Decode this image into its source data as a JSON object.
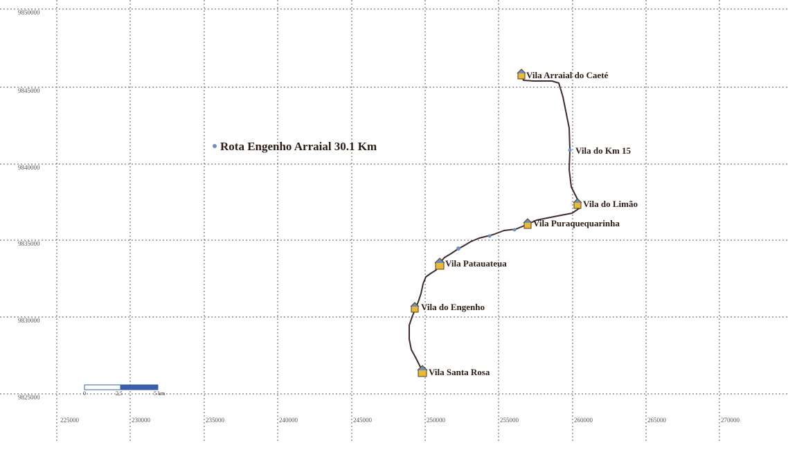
{
  "map": {
    "title": "Rota Engenho Arraial 30.1 Km",
    "route_color": "#3d2b2b",
    "grid_color": "#555555",
    "x_ticks": [
      "225000",
      "230000",
      "235000",
      "240000",
      "245000",
      "250000",
      "255000",
      "260000",
      "265000",
      "270000"
    ],
    "y_ticks": [
      "9850000",
      "9845000",
      "9840000",
      "9835000",
      "9830000",
      "9825000"
    ],
    "villages": [
      {
        "name": "Vila Arraial do Caeté",
        "icon": "house-icon"
      },
      {
        "name": "Vila do Km 15",
        "icon": "waypoint-dot-icon"
      },
      {
        "name": "Vila do Limão",
        "icon": "house-icon"
      },
      {
        "name": "Vila Puraquequarinha",
        "icon": "house-icon"
      },
      {
        "name": "Vila Patauateua",
        "icon": "house-icon"
      },
      {
        "name": "Vila do Engenho",
        "icon": "house-icon"
      },
      {
        "name": "Vila Santa Rosa",
        "icon": "house-icon"
      }
    ],
    "scale_bar": {
      "labels": [
        "0",
        "2,5",
        "5 km"
      ],
      "colors": [
        "#ffffff",
        "#3a5fa8"
      ]
    }
  }
}
